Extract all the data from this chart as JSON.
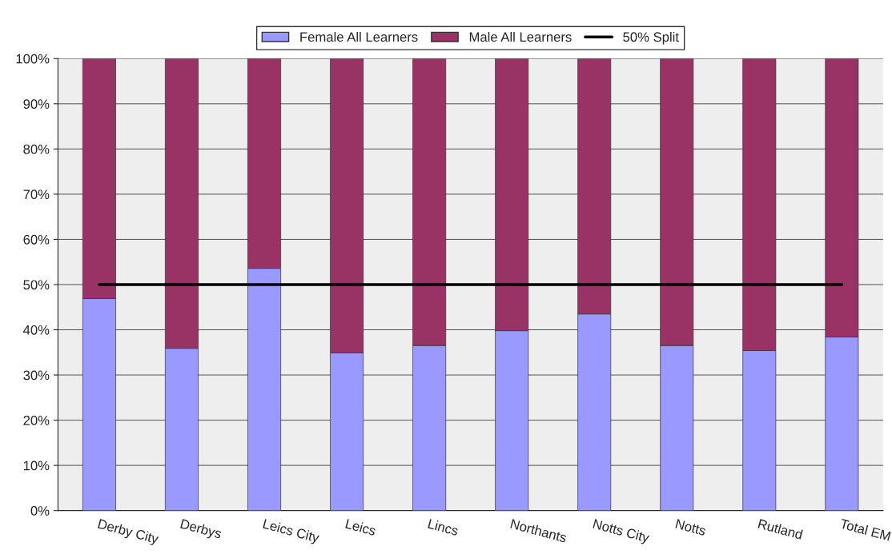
{
  "chart_data": {
    "type": "bar",
    "stacked": true,
    "categories": [
      "Derby City",
      "Derbys",
      "Leics City",
      "Leics",
      "Lincs",
      "Northants",
      "Notts City",
      "Notts",
      "Rutland",
      "Total EM"
    ],
    "series": [
      {
        "name": "Female All Learners",
        "color": "#9999ff",
        "values": [
          46.9,
          35.9,
          53.6,
          34.9,
          36.5,
          39.8,
          43.5,
          36.5,
          35.4,
          38.4
        ]
      },
      {
        "name": "Male All Learners",
        "color": "#993366",
        "values": [
          53.1,
          64.1,
          46.4,
          65.1,
          63.5,
          60.2,
          56.5,
          63.5,
          64.6,
          61.6
        ]
      },
      {
        "name": "50% Split",
        "type": "line",
        "color": "#000000",
        "values": [
          50,
          50,
          50,
          50,
          50,
          50,
          50,
          50,
          50,
          50
        ]
      }
    ],
    "ylim": [
      0,
      100
    ],
    "yticks": [
      {
        "value": 0,
        "label": "0%"
      },
      {
        "value": 10,
        "label": "10%"
      },
      {
        "value": 20,
        "label": "20%"
      },
      {
        "value": 30,
        "label": "30%"
      },
      {
        "value": 40,
        "label": "40%"
      },
      {
        "value": 50,
        "label": "50%"
      },
      {
        "value": 60,
        "label": "60%"
      },
      {
        "value": 70,
        "label": "70%"
      },
      {
        "value": 80,
        "label": "80%"
      },
      {
        "value": 90,
        "label": "90%"
      },
      {
        "value": 100,
        "label": "100%"
      }
    ],
    "grid": "y",
    "legend": "top",
    "marker": "none",
    "line_style": "solid"
  }
}
